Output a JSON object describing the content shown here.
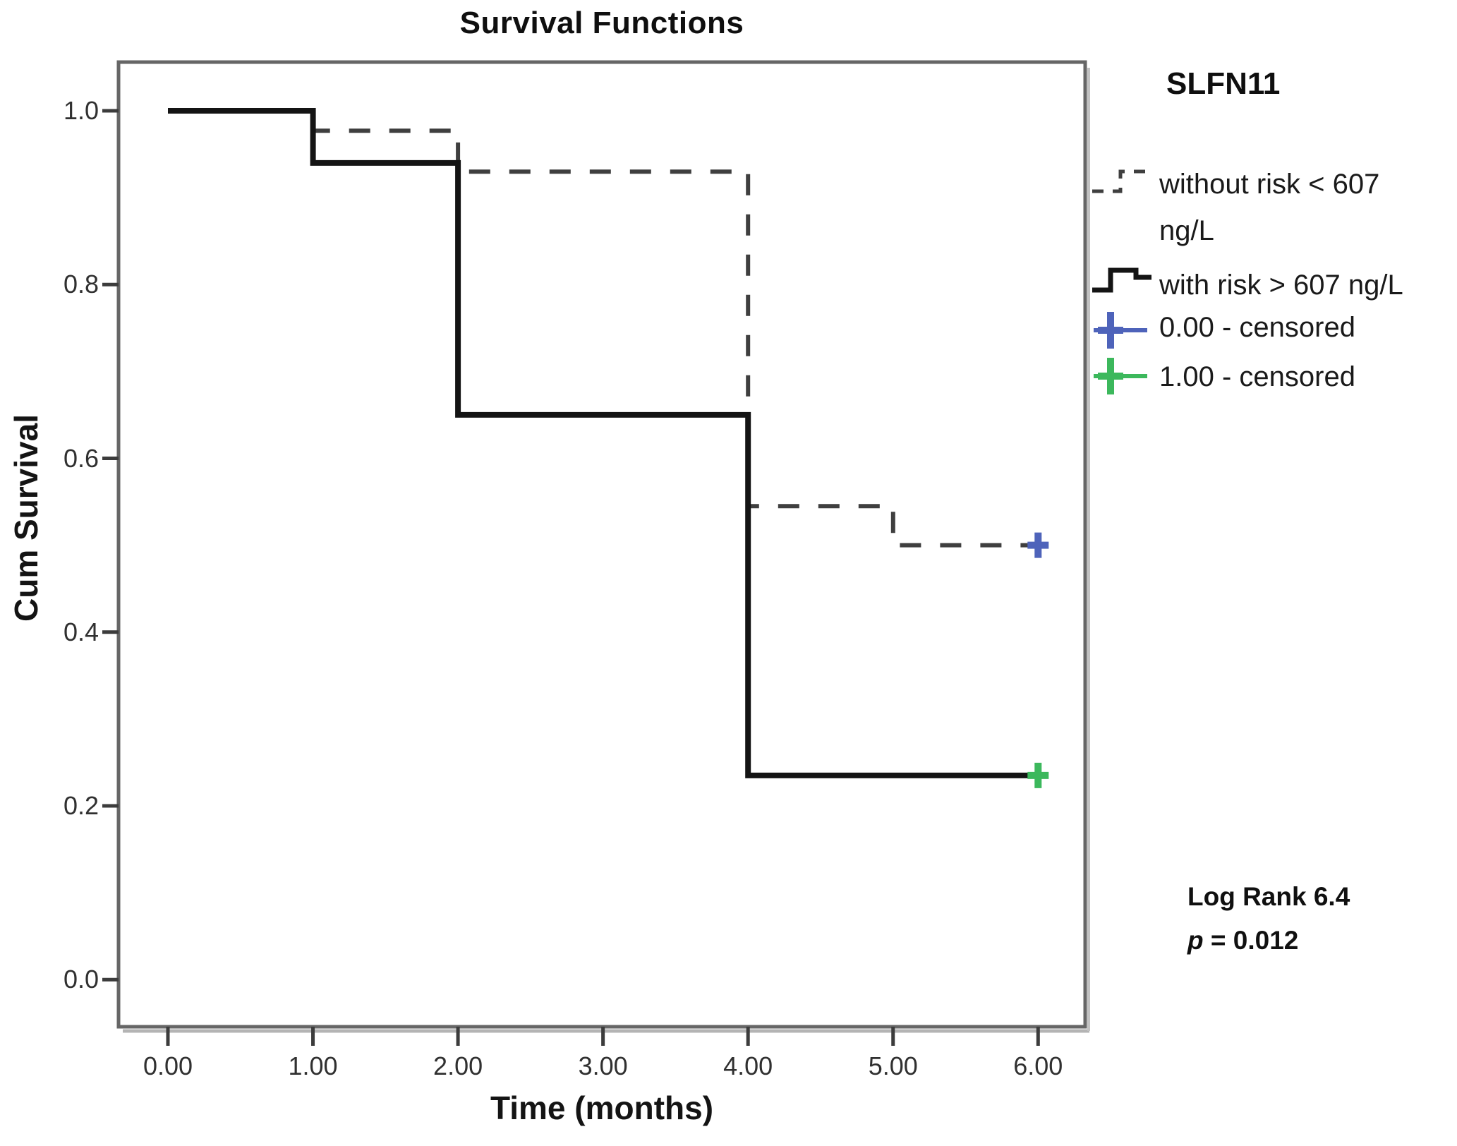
{
  "title": "Survival Functions",
  "axes": {
    "x_label": "Time (months)",
    "y_label": "Cum Survival",
    "x_ticks": [
      "0.00",
      "1.00",
      "2.00",
      "3.00",
      "4.00",
      "5.00",
      "6.00"
    ],
    "y_ticks": [
      "1.0",
      "0.8",
      "0.6",
      "0.4",
      "0.2",
      "0.0"
    ]
  },
  "legend": {
    "title": "SLFN11",
    "entries": [
      {
        "label": "without risk < 607 ng/L",
        "lines": [
          "without risk < 607",
          "ng/L"
        ],
        "style": "dashed",
        "color": "#3f3f3f"
      },
      {
        "label": "with risk > 607 ng/L",
        "lines": [
          "with risk > 607 ng/L"
        ],
        "style": "solid",
        "color": "#141414"
      },
      {
        "label": "0.00 - censored",
        "lines": [
          "0.00 - censored"
        ],
        "style": "plus",
        "color": "#4e63ba"
      },
      {
        "label": "1.00 - censored",
        "lines": [
          "1.00 - censored"
        ],
        "style": "plus",
        "color": "#3cb85c"
      }
    ]
  },
  "annotation": {
    "line1": "Log Rank 6.4",
    "p_symbol": "p",
    "p_rest": " = 0.012"
  },
  "chart_data": {
    "type": "line",
    "subtype": "kaplan_meier_step",
    "title": "Survival Functions",
    "xlabel": "Time (months)",
    "ylabel": "Cum Survival",
    "xlim": [
      -0.35,
      6.33
    ],
    "ylim": [
      -0.05,
      1.06
    ],
    "x_tick_values": [
      0,
      1,
      2,
      3,
      4,
      5,
      6
    ],
    "y_tick_values": [
      1.0,
      0.8,
      0.6,
      0.4,
      0.2,
      0.0
    ],
    "grid": false,
    "legend_position": "right",
    "series": [
      {
        "name": "without risk < 607 ng/L",
        "group": "0.00",
        "style": "dashed",
        "color": "#3f3f3f",
        "step_points": [
          [
            0,
            1.0
          ],
          [
            1,
            0.977
          ],
          [
            2,
            0.93
          ],
          [
            4,
            0.545
          ],
          [
            5,
            0.5
          ]
        ],
        "end_x": 6,
        "censored": [
          {
            "x": 6,
            "y": 0.5,
            "marker_color": "#4e63ba"
          }
        ]
      },
      {
        "name": "with risk > 607 ng/L",
        "group": "1.00",
        "style": "solid",
        "color": "#141414",
        "step_points": [
          [
            0,
            1.0
          ],
          [
            1,
            0.94
          ],
          [
            2,
            0.65
          ],
          [
            4,
            0.235
          ]
        ],
        "end_x": 6,
        "censored": [
          {
            "x": 6,
            "y": 0.235,
            "marker_color": "#3cb85c"
          }
        ]
      }
    ],
    "annotations": {
      "log_rank": 6.4,
      "p_value": 0.012
    }
  }
}
